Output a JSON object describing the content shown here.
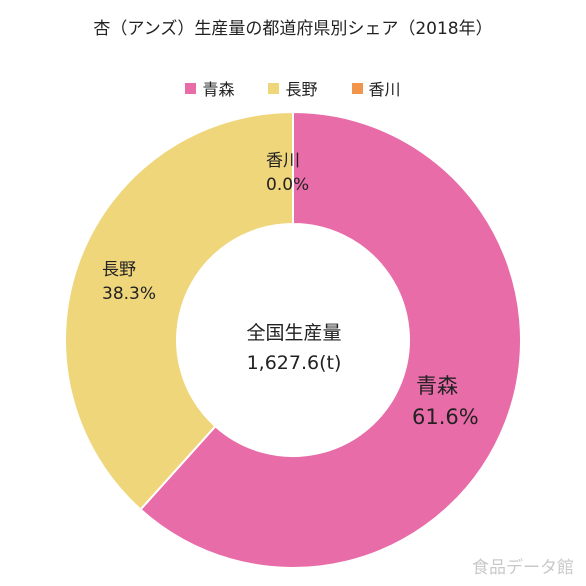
{
  "chart_data": {
    "type": "pie",
    "title": "杏（アンズ）生産量の都道府県別シェア（2018年）",
    "center_label": "全国生産量",
    "center_value": "1,627.6(t)",
    "slices": [
      {
        "name": "青森",
        "percent_label": "61.6%",
        "value": 61.6,
        "color": "#e86ca8"
      },
      {
        "name": "長野",
        "percent_label": "38.3%",
        "value": 38.3,
        "color": "#efd67b"
      },
      {
        "name": "香川",
        "percent_label": "0.0%",
        "value": 0.0,
        "color": "#f0954a"
      }
    ],
    "legend_position": "top"
  },
  "watermark": "食品データ館"
}
